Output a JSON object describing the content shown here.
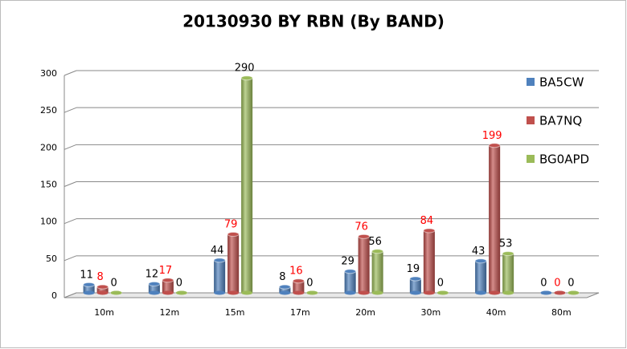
{
  "chart_data": {
    "type": "bar",
    "title": "20130930 BY RBN (By BAND)",
    "categories": [
      "10m",
      "12m",
      "15m",
      "17m",
      "20m",
      "30m",
      "40m",
      "80m"
    ],
    "series": [
      {
        "name": "BA5CW",
        "color": "#4f81bd",
        "label_color": "#000000",
        "values": [
          11,
          12,
          44,
          8,
          29,
          19,
          43,
          0
        ]
      },
      {
        "name": "BA7NQ",
        "color": "#c0504d",
        "label_color": "#ff0000",
        "values": [
          8,
          17,
          79,
          16,
          76,
          84,
          199,
          0
        ]
      },
      {
        "name": "BG0APD",
        "color": "#9bbb59",
        "label_color": "#000000",
        "values": [
          0,
          0,
          290,
          0,
          56,
          0,
          53,
          0
        ]
      }
    ],
    "ylim": [
      0,
      300
    ],
    "yticks": [
      0,
      50,
      100,
      150,
      200,
      250,
      300
    ],
    "grid": true,
    "legend": "right"
  }
}
